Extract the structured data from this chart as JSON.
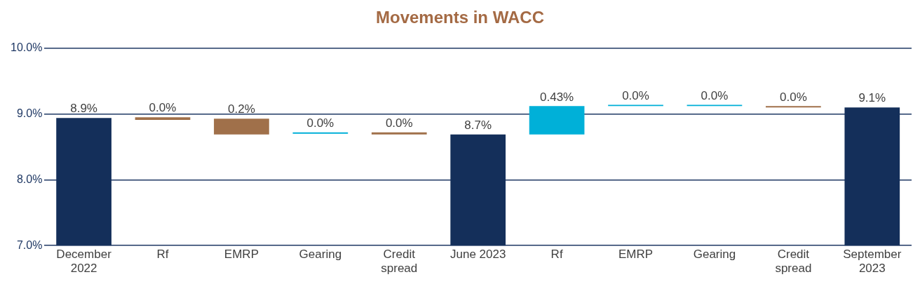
{
  "chart_data": {
    "type": "bar",
    "title": "Movements in WACC",
    "categories": [
      "December 2022",
      "Rf",
      "EMRP",
      "Gearing",
      "Credit spread",
      "June 2023",
      "Rf",
      "EMRP",
      "Gearing",
      "Credit spread",
      "September 2023"
    ],
    "values": [
      8.94,
      -0.04,
      -0.24,
      0.02,
      -0.03,
      8.69,
      0.43,
      0.02,
      0.02,
      -0.02,
      9.1
    ],
    "base": [
      null,
      8.95,
      8.93,
      8.7,
      8.72,
      null,
      8.69,
      9.12,
      9.12,
      9.12,
      null
    ],
    "colors": [
      "#142f5a",
      "#a0704a",
      "#a0704a",
      "#00b0d8",
      "#a0704a",
      "#142f5a",
      "#00b0d8",
      "#00b0d8",
      "#00b0d8",
      "#a0704a",
      "#142f5a"
    ],
    "value_labels": [
      "8.9%",
      "0.0%",
      "0.2%",
      "0.0%",
      "0.0%",
      "8.7%",
      "0.43%",
      "0.0%",
      "0.0%",
      "0.0%",
      "9.1%"
    ],
    "ylim": [
      7,
      10
    ],
    "yticks": [
      {
        "value": 7,
        "label": "7.0%"
      },
      {
        "value": 8,
        "label": "8.0%"
      },
      {
        "value": 9,
        "label": "9.0%"
      },
      {
        "value": 10,
        "label": "10.0%"
      }
    ],
    "grid": "y"
  }
}
